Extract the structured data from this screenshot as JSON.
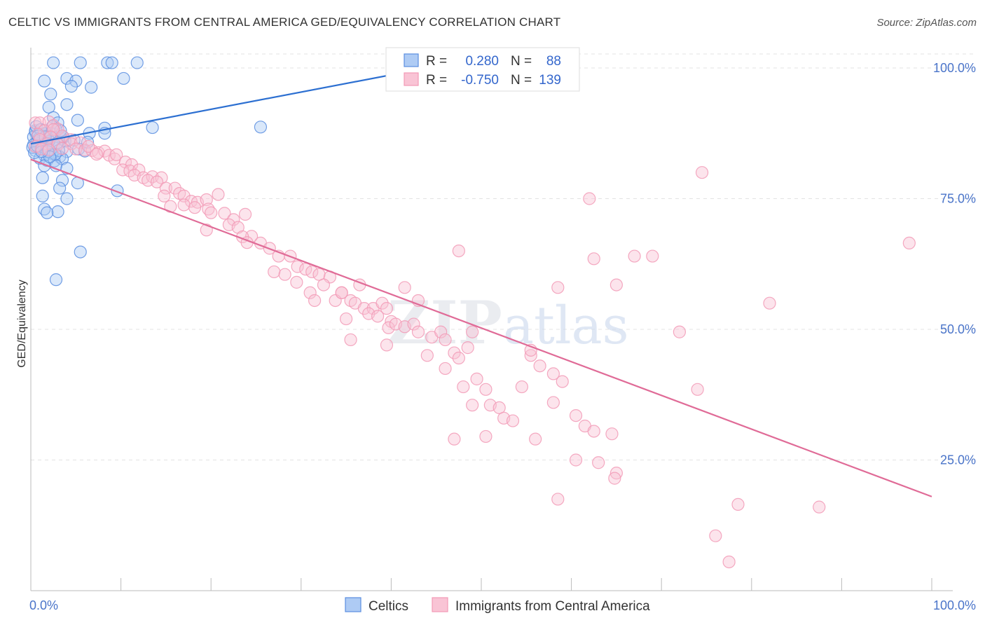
{
  "title": "CELTIC VS IMMIGRANTS FROM CENTRAL AMERICA GED/EQUIVALENCY CORRELATION CHART",
  "source": "Source: ZipAtlas.com",
  "watermark": {
    "zip": "ZIP",
    "atlas": "atlas"
  },
  "colors": {
    "celtic": "#5b8ee0",
    "celtic_line": "#2c6fd1",
    "immigrants": "#f29ab6",
    "immigrants_line": "#e06b97",
    "tick": "#4a74c9",
    "grid": "#e3e3e3"
  },
  "chart_data": {
    "type": "scatter",
    "title": "CELTIC VS IMMIGRANTS FROM CENTRAL AMERICA GED/EQUIVALENCY CORRELATION CHART",
    "xlabel": "",
    "ylabel": "GED/Equivalency",
    "xlim": [
      0,
      100
    ],
    "ylim": [
      0,
      103
    ],
    "x_tick_labels": [
      "0.0%",
      "100.0%"
    ],
    "y_ticks": [
      {
        "value": 25,
        "label": "25.0%"
      },
      {
        "value": 50,
        "label": "50.0%"
      },
      {
        "value": 75,
        "label": "75.0%"
      },
      {
        "value": 100,
        "label": "100.0%"
      }
    ],
    "grid": true,
    "legend_position": "top-center",
    "stats": [
      {
        "series": "Celtics",
        "r_label": "R =",
        "r_value": "0.280",
        "n_label": "N =",
        "n_value": "88"
      },
      {
        "series": "Immigrants from Central America",
        "r_label": "R =",
        "r_value": "-0.750",
        "n_label": "N =",
        "n_value": "139"
      }
    ],
    "series": [
      {
        "name": "Celtics",
        "trend": {
          "x": [
            0,
            44
          ],
          "y": [
            85.5,
            100
          ]
        },
        "points": [
          [
            2.5,
            101
          ],
          [
            5.5,
            101
          ],
          [
            8.5,
            101
          ],
          [
            9,
            101
          ],
          [
            11.8,
            101
          ],
          [
            1.5,
            97.5
          ],
          [
            4,
            98
          ],
          [
            5,
            97.5
          ],
          [
            10.3,
            98
          ],
          [
            2.2,
            95
          ],
          [
            4.5,
            96.5
          ],
          [
            6.7,
            96.3
          ],
          [
            2,
            92.5
          ],
          [
            4,
            93
          ],
          [
            2.5,
            90.5
          ],
          [
            3,
            89.5
          ],
          [
            5.2,
            90
          ],
          [
            2.8,
            88.2
          ],
          [
            8.2,
            88.5
          ],
          [
            13.5,
            88.6
          ],
          [
            25.5,
            88.7
          ],
          [
            0.5,
            87.7
          ],
          [
            1.6,
            87.4
          ],
          [
            2.6,
            87.3
          ],
          [
            3.5,
            86.5
          ],
          [
            6.5,
            87.5
          ],
          [
            8.2,
            87.5
          ],
          [
            0.3,
            86.8
          ],
          [
            0.7,
            86
          ],
          [
            1.2,
            85.8
          ],
          [
            1.9,
            86.5
          ],
          [
            0.3,
            85.3
          ],
          [
            0.8,
            85.5
          ],
          [
            1.3,
            84.6
          ],
          [
            0.5,
            84.2
          ],
          [
            1.1,
            84.6
          ],
          [
            2.5,
            84.8
          ],
          [
            3,
            85.8
          ],
          [
            3.8,
            86
          ],
          [
            5.3,
            84.5
          ],
          [
            6,
            84.1
          ],
          [
            4,
            84
          ],
          [
            1.5,
            83.3
          ],
          [
            2.3,
            83.6
          ],
          [
            3.2,
            83
          ],
          [
            1,
            82.7
          ],
          [
            1.8,
            82.3
          ],
          [
            2.6,
            82.2
          ],
          [
            3.5,
            82.6
          ],
          [
            1.5,
            81.3
          ],
          [
            2.8,
            81.3
          ],
          [
            4,
            80.8
          ],
          [
            1.3,
            79
          ],
          [
            3.5,
            78.5
          ],
          [
            5.2,
            78
          ],
          [
            3.2,
            77
          ],
          [
            9.6,
            76.5
          ],
          [
            1.3,
            75.5
          ],
          [
            4,
            75
          ],
          [
            1.5,
            73
          ],
          [
            3,
            72.5
          ],
          [
            1.8,
            72.3
          ],
          [
            5.5,
            64.8
          ],
          [
            2.8,
            59.5
          ],
          [
            0.5,
            88
          ],
          [
            0.6,
            88.8
          ],
          [
            1.4,
            87
          ],
          [
            2,
            86
          ],
          [
            0.2,
            84.8
          ],
          [
            0.9,
            86.5
          ],
          [
            2.2,
            87.5
          ],
          [
            3.1,
            84.2
          ],
          [
            2.7,
            83.5
          ],
          [
            1.7,
            85.2
          ],
          [
            0.4,
            83.8
          ],
          [
            2.4,
            88.8
          ],
          [
            1.1,
            88.2
          ],
          [
            3.6,
            86.8
          ],
          [
            0.8,
            87
          ],
          [
            1.9,
            84
          ],
          [
            4.8,
            86.2
          ],
          [
            3.3,
            88
          ],
          [
            2.1,
            83
          ],
          [
            1.6,
            86.8
          ],
          [
            0.7,
            85.1
          ],
          [
            2.9,
            85.6
          ],
          [
            1.2,
            84
          ],
          [
            6.3,
            85.8
          ]
        ]
      },
      {
        "name": "Immigrants from Central America",
        "trend": {
          "x": [
            0,
            100
          ],
          "y": [
            82.5,
            18
          ]
        },
        "points": [
          [
            54.5,
            101
          ],
          [
            0.5,
            89.5
          ],
          [
            1,
            89.5
          ],
          [
            2,
            89.7
          ],
          [
            2.5,
            89
          ],
          [
            3,
            88.3
          ],
          [
            1.5,
            88
          ],
          [
            2.5,
            88.2
          ],
          [
            0.8,
            87.3
          ],
          [
            2.2,
            86.8
          ],
          [
            3.5,
            87
          ],
          [
            1,
            86.3
          ],
          [
            4.4,
            86.3
          ],
          [
            1.8,
            85.5
          ],
          [
            3,
            85.4
          ],
          [
            4.5,
            85.5
          ],
          [
            5.5,
            85.7
          ],
          [
            0.5,
            85
          ],
          [
            1.2,
            84.5
          ],
          [
            2,
            84.3
          ],
          [
            3.5,
            84.6
          ],
          [
            5,
            84.5
          ],
          [
            6,
            84.3
          ],
          [
            6.8,
            84.2
          ],
          [
            7.5,
            83.8
          ],
          [
            8.2,
            84.1
          ],
          [
            6.4,
            85
          ],
          [
            7.3,
            83.5
          ],
          [
            8.7,
            83.3
          ],
          [
            9.3,
            82.6
          ],
          [
            9.5,
            83.4
          ],
          [
            10.5,
            82
          ],
          [
            11.2,
            81.5
          ],
          [
            10.2,
            80.5
          ],
          [
            11,
            80.3
          ],
          [
            12,
            80.5
          ],
          [
            11.5,
            79.5
          ],
          [
            12.5,
            79
          ],
          [
            13.5,
            79.2
          ],
          [
            14.5,
            79
          ],
          [
            13,
            78.5
          ],
          [
            14,
            78.2
          ],
          [
            15,
            77
          ],
          [
            16,
            77
          ],
          [
            14.8,
            75.5
          ],
          [
            16.5,
            76
          ],
          [
            17,
            75.5
          ],
          [
            17.8,
            74.5
          ],
          [
            18.5,
            74.3
          ],
          [
            19.5,
            74.8
          ],
          [
            20.8,
            75.8
          ],
          [
            15.5,
            73.5
          ],
          [
            17,
            73.8
          ],
          [
            18.2,
            73.3
          ],
          [
            19.7,
            73
          ],
          [
            20,
            72.3
          ],
          [
            21.5,
            72.2
          ],
          [
            22.5,
            71
          ],
          [
            23.8,
            72
          ],
          [
            22,
            70
          ],
          [
            23,
            69.5
          ],
          [
            19.5,
            69
          ],
          [
            24.5,
            67.8
          ],
          [
            23.5,
            67.7
          ],
          [
            24,
            66.6
          ],
          [
            25.5,
            66.5
          ],
          [
            26.5,
            65.5
          ],
          [
            27.5,
            64
          ],
          [
            28.8,
            64
          ],
          [
            29.6,
            62
          ],
          [
            30.5,
            61.5
          ],
          [
            27,
            61
          ],
          [
            28.2,
            60.5
          ],
          [
            31.2,
            61
          ],
          [
            32,
            60.5
          ],
          [
            33.2,
            60
          ],
          [
            29.5,
            59
          ],
          [
            32.5,
            58.5
          ],
          [
            31,
            57
          ],
          [
            34.5,
            57
          ],
          [
            36.5,
            58.5
          ],
          [
            31.5,
            55.5
          ],
          [
            33.8,
            55.5
          ],
          [
            35.5,
            55.5
          ],
          [
            36,
            55
          ],
          [
            37,
            54
          ],
          [
            35,
            52
          ],
          [
            38,
            54
          ],
          [
            39,
            55
          ],
          [
            39.5,
            54
          ],
          [
            37.5,
            53
          ],
          [
            40,
            51.5
          ],
          [
            38.5,
            52.5
          ],
          [
            39.7,
            50.3
          ],
          [
            40.5,
            51
          ],
          [
            41.5,
            50.5
          ],
          [
            42.5,
            51
          ],
          [
            43,
            49.5
          ],
          [
            44.5,
            48.5
          ],
          [
            45.5,
            49.5
          ],
          [
            46,
            48
          ],
          [
            39.5,
            47
          ],
          [
            47,
            45.5
          ],
          [
            48.5,
            46.5
          ],
          [
            49,
            49.5
          ],
          [
            47.5,
            44.5
          ],
          [
            44,
            45
          ],
          [
            46,
            42.5
          ],
          [
            41.5,
            58
          ],
          [
            43,
            55.5
          ],
          [
            47.5,
            65
          ],
          [
            34.5,
            57
          ],
          [
            35.5,
            48
          ],
          [
            48,
            39
          ],
          [
            49.5,
            40.5
          ],
          [
            50.5,
            38.5
          ],
          [
            49,
            35.5
          ],
          [
            51,
            35.5
          ],
          [
            52,
            35
          ],
          [
            52.5,
            33
          ],
          [
            50.5,
            29.5
          ],
          [
            47,
            29
          ],
          [
            53.5,
            32.5
          ],
          [
            54.5,
            39
          ],
          [
            55.5,
            45
          ],
          [
            55.5,
            46
          ],
          [
            56.5,
            43
          ],
          [
            58,
            41.5
          ],
          [
            59,
            40
          ],
          [
            58,
            36
          ],
          [
            60.5,
            33.5
          ],
          [
            56,
            29
          ],
          [
            58.5,
            17.5
          ],
          [
            61.5,
            31.5
          ],
          [
            62.5,
            30.5
          ],
          [
            60.5,
            25
          ],
          [
            63,
            24.5
          ],
          [
            64.5,
            30
          ],
          [
            65,
            22.5
          ],
          [
            64.8,
            21.5
          ],
          [
            62.5,
            63.5
          ],
          [
            65,
            58.5
          ],
          [
            67,
            64
          ],
          [
            69,
            64
          ],
          [
            72,
            49.5
          ],
          [
            74,
            38.5
          ],
          [
            74.5,
            80
          ],
          [
            76,
            10.5
          ],
          [
            78.5,
            16.5
          ],
          [
            82,
            55
          ],
          [
            87.5,
            16
          ],
          [
            97.5,
            66.5
          ],
          [
            77.5,
            5.5
          ],
          [
            58.5,
            58
          ],
          [
            62,
            75
          ]
        ]
      }
    ]
  },
  "legend": {
    "celtics": "Celtics",
    "immigrants": "Immigrants from Central America"
  }
}
